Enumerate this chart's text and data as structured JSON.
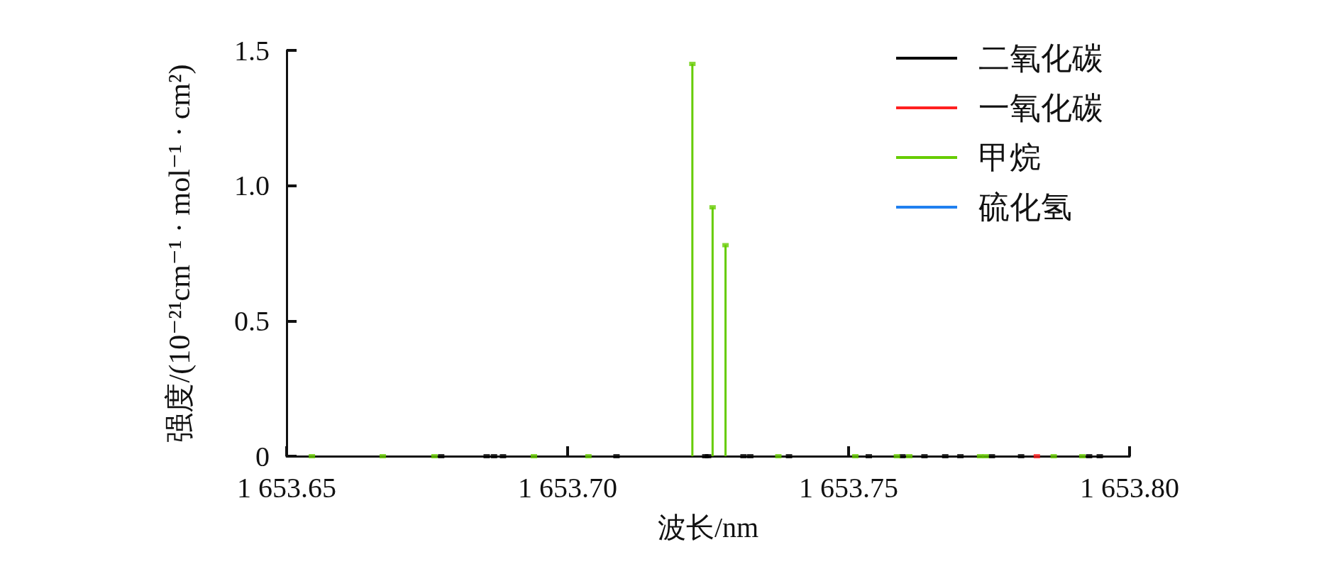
{
  "chart_data": {
    "type": "lollipop",
    "xlabel": "波长/nm",
    "ylabel": "强度/(10⁻²¹cm⁻¹ · mol⁻¹ · cm²)",
    "xlim": [
      1653.65,
      1653.8
    ],
    "xticks": [
      {
        "value": 1653.65,
        "label": "1 653.65"
      },
      {
        "value": 1653.7,
        "label": "1 653.70"
      },
      {
        "value": 1653.75,
        "label": "1 653.75"
      },
      {
        "value": 1653.8,
        "label": "1 653.80"
      }
    ],
    "ylim": [
      0,
      1.5
    ],
    "yticks": [
      0,
      0.5,
      {
        "value": 1,
        "label": "1.0"
      },
      1.5
    ],
    "grid": false,
    "legend": "top right",
    "marker": "square",
    "series": [
      {
        "name": "二氧化碳",
        "color": "#000000",
        "x": [
          1653.6775,
          1653.6856,
          1653.6869,
          1653.6885,
          1653.7087,
          1653.7245,
          1653.725,
          1653.7313,
          1653.7325,
          1653.7394,
          1653.7536,
          1653.7596,
          1653.7635,
          1653.7672,
          1653.7699,
          1653.7755,
          1653.7807,
          1653.7928,
          1653.7947
        ],
        "values": [
          0,
          0,
          0,
          0,
          0,
          0,
          0,
          0,
          0,
          0,
          0,
          0,
          0,
          0,
          0,
          0,
          0,
          0,
          0
        ]
      },
      {
        "name": "一氧化碳",
        "color": "#ff2020",
        "x": [
          1653.7835
        ],
        "values": [
          0
        ]
      },
      {
        "name": "甲烷",
        "color": "#66cc00",
        "x": [
          1653.6545,
          1653.6671,
          1653.6763,
          1653.694,
          1653.7037,
          1653.7222,
          1653.7258,
          1653.7281,
          1653.7375,
          1653.7512,
          1653.7586,
          1653.7608,
          1653.7734,
          1653.7744,
          1653.7865,
          1653.7916
        ],
        "values": [
          0,
          0,
          0,
          0,
          0,
          1.45,
          0.92,
          0.78,
          0,
          0,
          0,
          0,
          0,
          0,
          0,
          0
        ]
      },
      {
        "name": "硫化氢",
        "color": "#2080f0"
      }
    ]
  }
}
